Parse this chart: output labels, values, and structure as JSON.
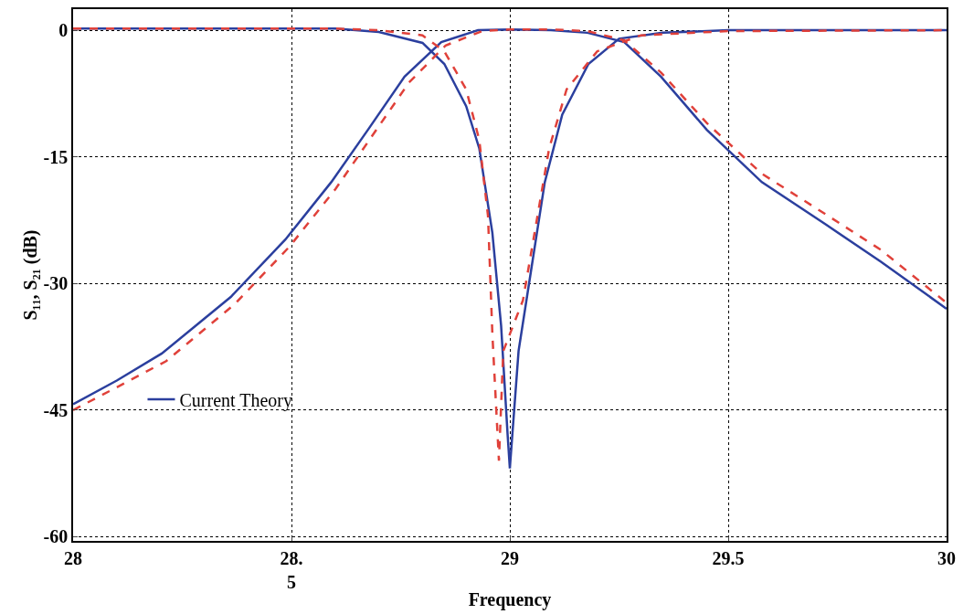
{
  "chart_data": {
    "type": "line",
    "xlabel": "Frequency",
    "ylabel": "S₁₁, S₂₁ (dB)",
    "xlim": [
      28,
      30
    ],
    "xticks": [
      28,
      {
        "value": 28.5,
        "label": "28.\n5"
      },
      29,
      29.5,
      30
    ],
    "ylim": [
      -60.5,
      2.5
    ],
    "yticks": [
      0,
      -15,
      -30,
      -45,
      -60
    ],
    "grid": true,
    "legend": "bottom left",
    "marker": "none",
    "series": [
      {
        "name": "Current Theory",
        "color": "#2b3f9e",
        "line_style": "solid",
        "x": [
          28,
          28.1,
          28.203,
          28.361,
          28.486,
          28.591,
          28.675,
          28.759,
          28.843,
          28.927,
          29.0,
          29.094,
          29.178,
          29.262,
          29.346,
          29.451,
          29.577,
          29.723,
          29.849,
          30
        ],
        "values": [
          -44.3,
          -41.5,
          -38.3,
          -31.6,
          -24.8,
          -18,
          -11.8,
          -5.5,
          -1.4,
          0,
          0.1,
          0,
          -0.3,
          -1.4,
          -5.5,
          -11.8,
          -18,
          -23,
          -27.4,
          -33
        ]
      },
      {
        "color": "#2b3f9e",
        "line_style": "solid",
        "x": [
          28,
          28.3,
          28.6,
          28.7,
          28.8,
          28.85,
          28.9,
          28.93,
          28.96,
          28.98,
          28.995,
          29.0,
          29.02,
          29.05,
          29.08,
          29.12,
          29.18,
          29.25,
          29.35,
          29.5,
          30
        ],
        "values": [
          0.2,
          0.2,
          0.2,
          -0.2,
          -1.5,
          -4,
          -9,
          -14,
          -24,
          -35,
          -48,
          -51.9,
          -38,
          -28,
          -18,
          -10,
          -4,
          -1,
          -0.3,
          0,
          0
        ]
      },
      {
        "color": "#e0413a",
        "line_style": "dashed",
        "x": [
          28,
          28.1,
          28.213,
          28.371,
          28.496,
          28.601,
          28.685,
          28.769,
          28.853,
          28.937,
          29.0,
          29.094,
          29.178,
          29.262,
          29.346,
          29.451,
          29.577,
          29.723,
          29.849,
          30
        ],
        "values": [
          -45,
          -42.3,
          -39.2,
          -32.4,
          -25.6,
          -18.8,
          -12.5,
          -6.2,
          -1.8,
          -0.1,
          0.1,
          0.1,
          -0.1,
          -1.2,
          -5,
          -11,
          -17,
          -21.8,
          -26,
          -32.3
        ]
      },
      {
        "color": "#e0413a",
        "line_style": "dashed",
        "x": [
          28,
          28.3,
          28.6,
          28.7,
          28.8,
          28.85,
          28.9,
          28.93,
          28.95,
          28.96,
          28.975,
          28.985,
          29.0,
          29.03,
          29.06,
          29.09,
          29.13,
          29.2,
          29.3,
          29.5,
          30
        ],
        "values": [
          0.2,
          0.2,
          0.2,
          0,
          -0.6,
          -2.5,
          -7,
          -13,
          -22,
          -36,
          -51,
          -38,
          -36,
          -32,
          -23,
          -14,
          -7,
          -2.5,
          -0.6,
          -0.1,
          0
        ]
      }
    ]
  }
}
